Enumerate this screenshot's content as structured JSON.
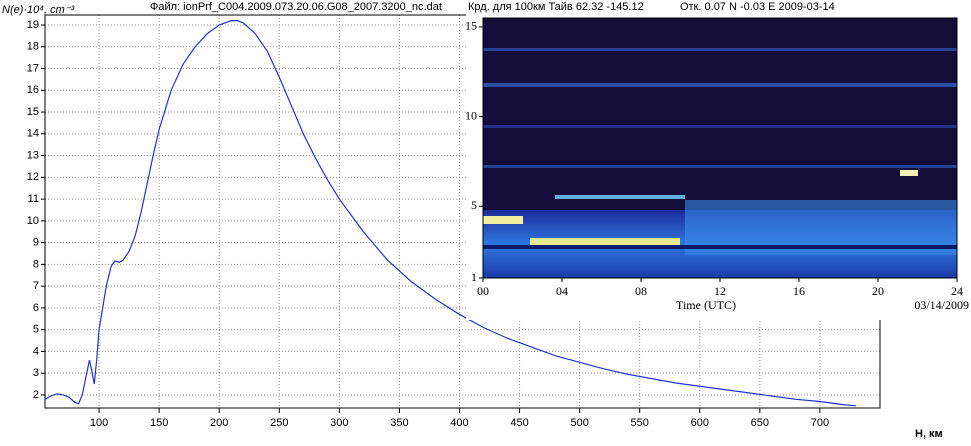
{
  "chart_data": [
    {
      "type": "line",
      "title": "Файл: ionPrf_C004.2009.073.20.06.G08_2007.3200_nc.dat",
      "subtitle": "Крд. для 100км Тайв 62.32 -145.12",
      "annotation": "Отк. 0.07 N -0.03 E 2009-03-14",
      "y_label": "N(e)·10⁴, cm⁻³",
      "x_label": "H, км",
      "xlim": [
        55,
        750
      ],
      "ylim": [
        1.4,
        19.46
      ],
      "xticks": [
        100,
        150,
        200,
        250,
        300,
        350,
        400,
        450,
        500,
        550,
        600,
        650,
        700
      ],
      "yticks": [
        2,
        3,
        4,
        5,
        6,
        7,
        8,
        9,
        10,
        11,
        12,
        13,
        14,
        15,
        16,
        17,
        18,
        19
      ],
      "grid": true,
      "series": [
        {
          "name": "N(e)",
          "color": "#2233cc",
          "x": [
            55,
            60,
            65,
            70,
            75,
            80,
            83,
            86,
            89,
            92,
            94,
            96,
            98,
            100,
            103,
            106,
            110,
            113,
            117,
            120,
            125,
            130,
            135,
            140,
            145,
            150,
            160,
            170,
            180,
            190,
            200,
            210,
            215,
            220,
            230,
            240,
            250,
            260,
            270,
            280,
            290,
            300,
            320,
            340,
            360,
            380,
            400,
            420,
            440,
            460,
            480,
            500,
            520,
            540,
            560,
            580,
            600,
            620,
            640,
            660,
            680,
            700,
            720,
            730
          ],
          "values": [
            1.8,
            1.95,
            2.05,
            2.0,
            1.9,
            1.65,
            1.6,
            2.0,
            2.8,
            3.6,
            3.1,
            2.5,
            3.6,
            5.0,
            6.0,
            7.0,
            7.9,
            8.15,
            8.1,
            8.2,
            8.6,
            9.3,
            10.4,
            11.7,
            13.0,
            14.2,
            16.0,
            17.2,
            18.0,
            18.6,
            19.0,
            19.2,
            19.2,
            19.1,
            18.6,
            17.8,
            16.6,
            15.3,
            14.0,
            12.9,
            11.9,
            11.0,
            9.5,
            8.2,
            7.2,
            6.4,
            5.7,
            5.1,
            4.6,
            4.2,
            3.8,
            3.5,
            3.2,
            2.95,
            2.75,
            2.55,
            2.4,
            2.25,
            2.1,
            1.95,
            1.8,
            1.7,
            1.55,
            1.5
          ]
        }
      ]
    },
    {
      "type": "heatmap",
      "x_label": "Time (UTC)",
      "date": "03/14/2009",
      "xlim": [
        0,
        24
      ],
      "ylim": [
        1,
        15.5
      ],
      "xticks": [
        {
          "value": 0,
          "label": "00"
        },
        {
          "value": 4,
          "label": "04"
        },
        {
          "value": 8,
          "label": "08"
        },
        {
          "value": 12,
          "label": "12"
        },
        {
          "value": 16,
          "label": "16"
        },
        {
          "value": 20,
          "label": "20"
        },
        {
          "value": 24,
          "label": "24"
        }
      ],
      "yticks": [
        1,
        5,
        10,
        15
      ]
    }
  ]
}
